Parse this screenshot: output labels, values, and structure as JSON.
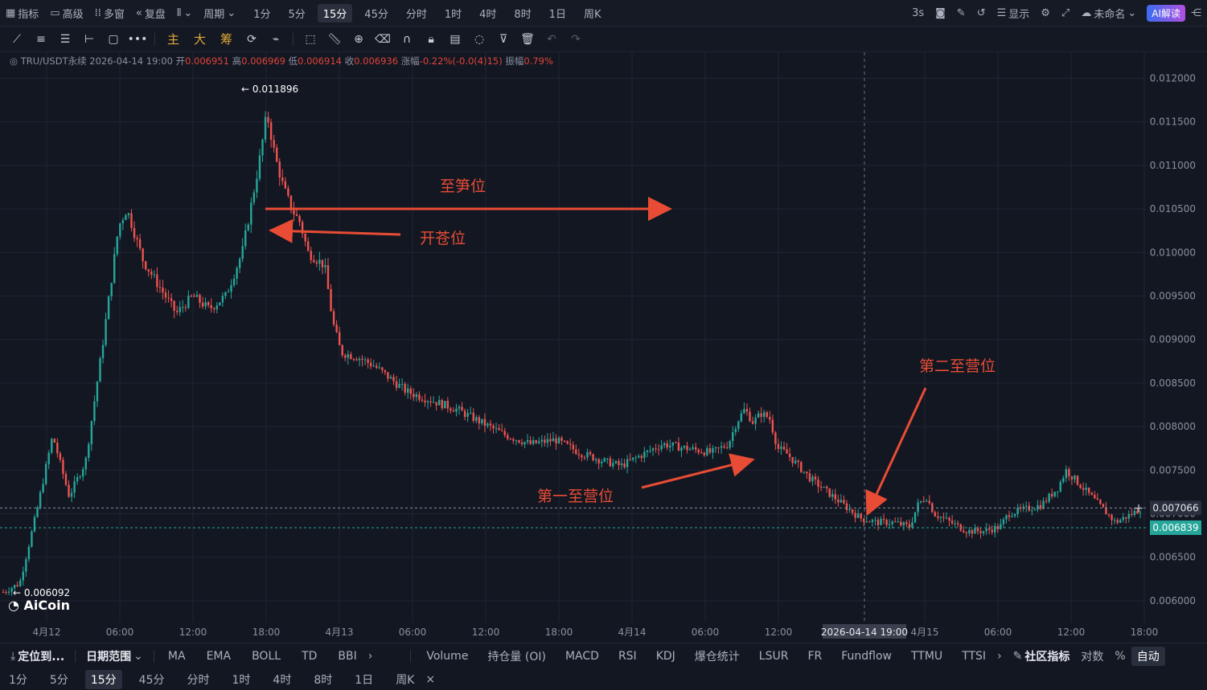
{
  "top_bar": {
    "items": [
      "指标",
      "高级",
      "多窗",
      "复盘"
    ],
    "period_label": "周期",
    "timeframes": [
      "1分",
      "5分",
      "15分",
      "45分",
      "分时",
      "1时",
      "4时",
      "8时",
      "1日",
      "周K"
    ],
    "active_timeframe": "15分",
    "refresh": "3s",
    "display_label": "显示",
    "layout_name": "未命名",
    "ai_label": "AI解读"
  },
  "draw_toolbar": {
    "indicators": [
      "主",
      "大",
      "筹"
    ]
  },
  "info_line": {
    "symbol": "TRU/USDT永续",
    "datetime": "2026-04-14 19:00",
    "open_label": "开",
    "open": "0.006951",
    "high_label": "高",
    "high": "0.006969",
    "low_label": "低",
    "low": "0.006914",
    "close_label": "收",
    "close": "0.006936",
    "change_label": "涨幅",
    "change": "-0.22%(-0.0(4)15)",
    "amplitude_label": "振幅",
    "amplitude": "0.79%"
  },
  "chart_data": {
    "type": "candlestick",
    "ylim": [
      0.00575,
      0.0123
    ],
    "y_ticks": [
      "0.012000",
      "0.011500",
      "0.011000",
      "0.010500",
      "0.010000",
      "0.009500",
      "0.009000",
      "0.008500",
      "0.008000",
      "0.007500",
      "0.007000",
      "0.006500",
      "0.006000"
    ],
    "x_ticks": [
      "4月12",
      "06:00",
      "12:00",
      "18:00",
      "4月13",
      "06:00",
      "12:00",
      "18:00",
      "4月14",
      "06:00",
      "12:00",
      "2026-04-14 19:00",
      "4月15",
      "06:00",
      "12:00",
      "18:00"
    ],
    "price_path": [
      [
        0,
        0.0061
      ],
      [
        2,
        0.0062
      ],
      [
        4,
        0.007
      ],
      [
        6,
        0.0079
      ],
      [
        8,
        0.0072
      ],
      [
        10,
        0.0076
      ],
      [
        12,
        0.0089
      ],
      [
        14,
        0.0103
      ],
      [
        15,
        0.0105
      ],
      [
        17,
        0.0099
      ],
      [
        19,
        0.0096
      ],
      [
        21,
        0.0093
      ],
      [
        23,
        0.0095
      ],
      [
        25,
        0.00935
      ],
      [
        27,
        0.0095
      ],
      [
        29,
        0.01
      ],
      [
        30,
        0.0105
      ],
      [
        31,
        0.011
      ],
      [
        32,
        0.0116
      ],
      [
        33,
        0.0111
      ],
      [
        34,
        0.01075
      ],
      [
        35,
        0.0105
      ],
      [
        36,
        0.01035
      ],
      [
        37,
        0.01
      ],
      [
        39,
        0.00985
      ],
      [
        40,
        0.0092
      ],
      [
        41,
        0.00885
      ],
      [
        43,
        0.0088
      ],
      [
        45,
        0.0087
      ],
      [
        47,
        0.00855
      ],
      [
        49,
        0.0084
      ],
      [
        52,
        0.0083
      ],
      [
        55,
        0.0082
      ],
      [
        58,
        0.00805
      ],
      [
        61,
        0.0079
      ],
      [
        64,
        0.0078
      ],
      [
        67,
        0.00785
      ],
      [
        70,
        0.0077
      ],
      [
        73,
        0.0076
      ],
      [
        75,
        0.00755
      ],
      [
        78,
        0.0077
      ],
      [
        80,
        0.0078
      ],
      [
        83,
        0.00775
      ],
      [
        86,
        0.0077
      ],
      [
        88,
        0.0078
      ],
      [
        89,
        0.00805
      ],
      [
        90,
        0.0082
      ],
      [
        91,
        0.00805
      ],
      [
        92,
        0.00815
      ],
      [
        93,
        0.0081
      ],
      [
        94,
        0.00775
      ],
      [
        95,
        0.0077
      ],
      [
        96,
        0.0076
      ],
      [
        98,
        0.0074
      ],
      [
        100,
        0.00725
      ],
      [
        102,
        0.0071
      ],
      [
        104,
        0.00695
      ],
      [
        106,
        0.0069
      ],
      [
        108,
        0.0069
      ],
      [
        110,
        0.00685
      ],
      [
        111,
        0.0071
      ],
      [
        112,
        0.0072
      ],
      [
        113,
        0.007
      ],
      [
        115,
        0.0069
      ],
      [
        117,
        0.0068
      ],
      [
        119,
        0.0068
      ],
      [
        121,
        0.00685
      ],
      [
        122,
        0.007
      ],
      [
        124,
        0.00705
      ],
      [
        126,
        0.0071
      ],
      [
        128,
        0.0073
      ],
      [
        129,
        0.0075
      ],
      [
        130,
        0.0074
      ],
      [
        131,
        0.0073
      ],
      [
        133,
        0.0071
      ],
      [
        135,
        0.0069
      ],
      [
        136,
        0.00695
      ],
      [
        138,
        0.00705
      ]
    ],
    "high_marker": "0.011896",
    "low_marker": "0.006092",
    "last_price": "0.006839",
    "crosshair_price": "0.007066",
    "annotations": [
      "至笋位",
      "开苍位",
      "第一至营位",
      "第二至营位"
    ],
    "watermark": "AiCoin"
  },
  "bottom_indicators": {
    "locate": "定位到...",
    "date_range": "日期范围",
    "main": [
      "MA",
      "EMA",
      "BOLL",
      "TD",
      "BBI"
    ],
    "sub": [
      "Volume",
      "持仓量 (OI)",
      "MACD",
      "RSI",
      "KDJ",
      "爆仓统计",
      "LSUR",
      "FR",
      "Fundflow",
      "TTMU",
      "TTSI"
    ],
    "community": "社区指标",
    "log": "对数",
    "percent": "%",
    "auto": "自动"
  },
  "bottom_timeframes": {
    "items": [
      "1分",
      "5分",
      "15分",
      "45分",
      "分时",
      "1时",
      "4时",
      "8时",
      "1日",
      "周K"
    ],
    "active": "15分"
  }
}
